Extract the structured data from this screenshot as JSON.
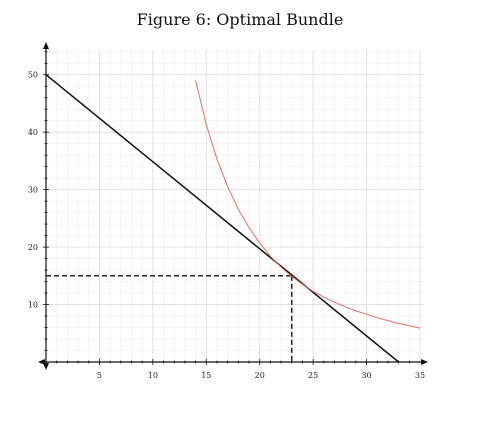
{
  "title": "Figure 6: Optimal Bundle",
  "chart_data": {
    "type": "line",
    "title": "Figure 6: Optimal Bundle",
    "xlabel": "",
    "ylabel": "",
    "xlim": [
      0,
      35
    ],
    "ylim": [
      0,
      55
    ],
    "x_ticks": [
      5,
      10,
      15,
      20,
      25,
      30,
      35
    ],
    "y_ticks": [
      10,
      20,
      30,
      40,
      50
    ],
    "grid": true,
    "series": [
      {
        "kind": "budget-line",
        "color": "#111111",
        "x": [
          0,
          33
        ],
        "y": [
          50,
          0
        ]
      },
      {
        "kind": "indifference-curve",
        "color": "#e0706a",
        "x": [
          14,
          15,
          16,
          17,
          18,
          19,
          20,
          21,
          22,
          23,
          24,
          25,
          26,
          27,
          28,
          29,
          30,
          31,
          32,
          33,
          34,
          35
        ],
        "y": [
          49.0,
          41.3,
          35.3,
          30.5,
          26.6,
          23.4,
          20.7,
          18.4,
          16.5,
          14.9,
          13.5,
          12.3,
          11.3,
          10.4,
          9.6,
          8.9,
          8.3,
          7.7,
          7.2,
          6.7,
          6.3,
          5.9
        ]
      }
    ],
    "optimal_bundle": {
      "x": 23,
      "y": 15,
      "color": "#111111",
      "style": "dashed"
    }
  }
}
